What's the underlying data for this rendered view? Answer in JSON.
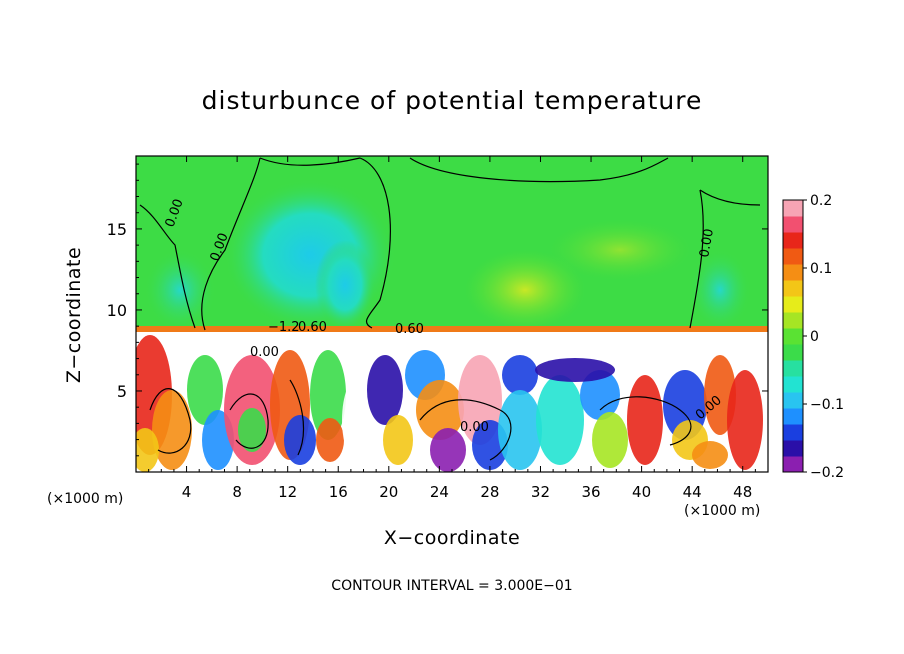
{
  "chart_data": {
    "type": "heatmap",
    "title": "disturbunce of potential temperature",
    "xlabel": "X−coordinate",
    "ylabel": "Z−coordinate",
    "x_unit_label": "(×1000 m)",
    "x_ticks": [
      4,
      8,
      12,
      16,
      20,
      24,
      28,
      32,
      36,
      40,
      44,
      48
    ],
    "y_ticks": [
      5,
      10,
      15
    ],
    "xlim": [
      0,
      50
    ],
    "ylim": [
      0,
      19.5
    ],
    "colorbar": {
      "ticks": [
        "0.2",
        "0.1",
        "0",
        "−0.1",
        "−0.2"
      ],
      "range": [
        -0.2,
        0.2
      ],
      "colors": [
        "#8b1fb0",
        "#2a0fa8",
        "#1a3fe0",
        "#1e90ff",
        "#29c4f0",
        "#22e3d2",
        "#27e0a0",
        "#3bdc4a",
        "#5ae233",
        "#a6e524",
        "#e6ec1a",
        "#f3c617",
        "#f58e14",
        "#f05a13",
        "#e8261a",
        "#f25070",
        "#f7a4b4"
      ]
    },
    "contour_labels": [
      "0.00",
      "0.00",
      "0.00",
      "0.60",
      "0.00",
      "0.00",
      "0.00",
      "−1.2",
      "0.60"
    ],
    "footnote": "CONTOUR INTERVAL = 3.000E−01"
  }
}
